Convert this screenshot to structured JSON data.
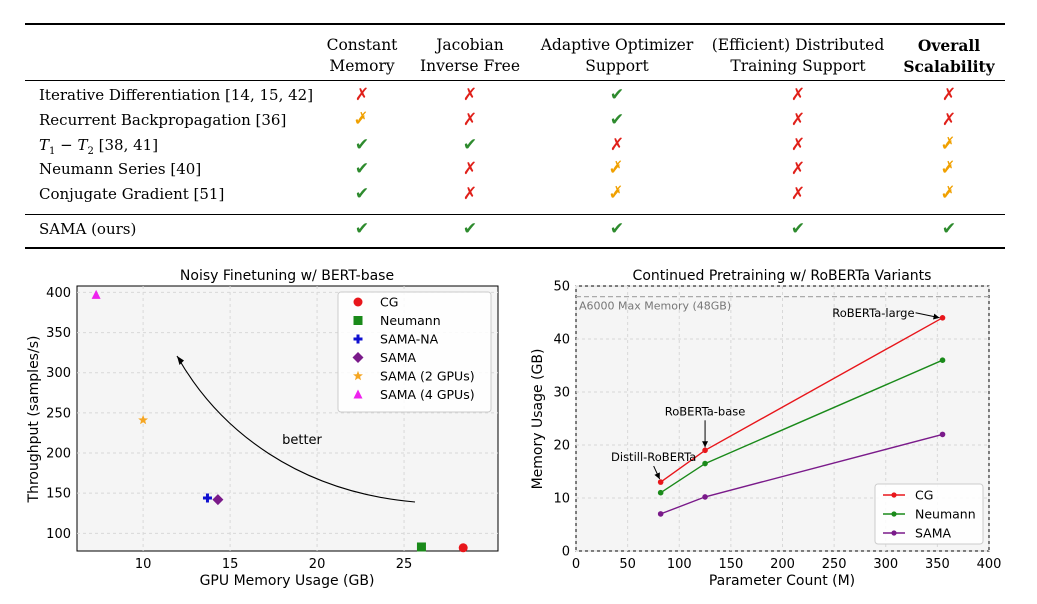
{
  "table": {
    "headers": [
      {
        "line1": "Constant",
        "line2": "Memory",
        "bold": false
      },
      {
        "line1": "Jacobian",
        "line2": "Inverse Free",
        "bold": false
      },
      {
        "line1": "Adaptive Optimizer",
        "line2": "Support",
        "bold": false
      },
      {
        "line1": "(Efficient) Distributed",
        "line2": "Training Support",
        "bold": false
      },
      {
        "line1": "Overall",
        "line2": "Scalability",
        "bold": true
      }
    ],
    "rows": [
      {
        "label": "Iterative Differentiation [14, 15, 42]",
        "marks": [
          "cross",
          "cross",
          "check",
          "cross",
          "cross"
        ]
      },
      {
        "label": "Recurrent Backpropagation [36]",
        "marks": [
          "partial",
          "cross",
          "check",
          "cross",
          "cross"
        ]
      },
      {
        "label_sym1": "T",
        "label_sub1": "1",
        "label_minus": " − ",
        "label_sym2": "T",
        "label_sub2": "2",
        "label_rest": " [38, 41]",
        "marks": [
          "check",
          "check",
          "cross",
          "cross",
          "partial"
        ]
      },
      {
        "label": "Neumann Series [40]",
        "marks": [
          "check",
          "cross",
          "partial",
          "cross",
          "partial"
        ]
      },
      {
        "label": "Conjugate Gradient [51]",
        "marks": [
          "check",
          "cross",
          "partial",
          "cross",
          "partial"
        ]
      },
      {
        "label": "SAMA (ours)",
        "marks": [
          "check",
          "check",
          "check",
          "check",
          "check"
        ]
      }
    ],
    "glyphs": {
      "check": "✔",
      "cross": "✗",
      "partial": "✔✗"
    }
  },
  "chart_data": [
    {
      "type": "scatter",
      "title": "Noisy Finetuning w/ BERT-base",
      "xlabel": "GPU Memory Usage (GB)",
      "ylabel": "Throughput (samples/s)",
      "xlim": [
        6.2,
        30.4
      ],
      "ylim": [
        78,
        408
      ],
      "xticks": [
        10,
        15,
        20,
        25
      ],
      "yticks": [
        100,
        150,
        200,
        250,
        300,
        350,
        400
      ],
      "grid": true,
      "legend_position": "top-right",
      "annotation": "better",
      "series": [
        {
          "name": "CG",
          "marker": "circle",
          "color": "#e8161b",
          "x": 28.4,
          "y": 82
        },
        {
          "name": "Neumann",
          "marker": "square",
          "color": "#1a8a1a",
          "x": 26.0,
          "y": 83
        },
        {
          "name": "SAMA-NA",
          "marker": "plus",
          "color": "#1010d0",
          "x": 13.7,
          "y": 144
        },
        {
          "name": "SAMA",
          "marker": "diamond",
          "color": "#7a1a8a",
          "x": 14.3,
          "y": 142
        },
        {
          "name": "SAMA (2 GPUs)",
          "marker": "star",
          "color": "#f5a623",
          "x": 10.0,
          "y": 241
        },
        {
          "name": "SAMA (4 GPUs)",
          "marker": "triangle",
          "color": "#ee22ee",
          "x": 7.3,
          "y": 397
        }
      ]
    },
    {
      "type": "line",
      "title": "Continued Pretraining w/ RoBERTa Variants",
      "xlabel": "Parameter Count (M)",
      "ylabel": "Memory Usage (GB)",
      "xlim": [
        0,
        400
      ],
      "ylim": [
        0,
        50
      ],
      "xticks": [
        0,
        50,
        100,
        150,
        200,
        250,
        300,
        350,
        400
      ],
      "yticks": [
        0,
        10,
        20,
        30,
        40,
        50
      ],
      "grid": true,
      "legend_position": "bottom-right",
      "hline": {
        "y": 48,
        "label": "A6000 Max Memory (48GB)"
      },
      "x": [
        82,
        125,
        355
      ],
      "series": [
        {
          "name": "CG",
          "color": "#e8161b",
          "values": [
            13,
            19,
            44
          ]
        },
        {
          "name": "Neumann",
          "color": "#1a8a1a",
          "values": [
            11,
            16.5,
            36
          ]
        },
        {
          "name": "SAMA",
          "color": "#7a1a8a",
          "values": [
            7,
            10.2,
            22
          ]
        }
      ],
      "annotations": [
        "Distill-RoBERTa",
        "RoBERTa-base",
        "RoBERTa-large"
      ]
    }
  ]
}
